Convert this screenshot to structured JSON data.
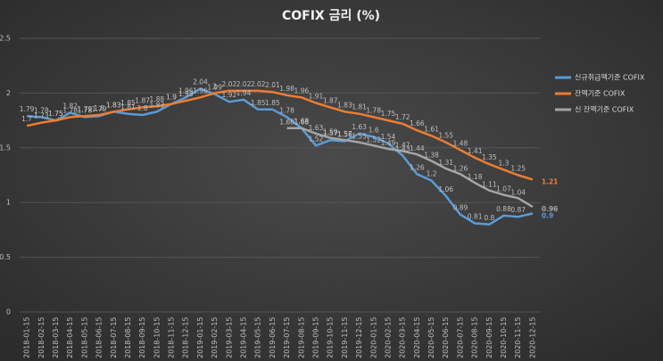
{
  "chart_data": {
    "type": "line",
    "title": "COFIX 금리 (%)",
    "categories": [
      "2018-01-15",
      "2018-02-15",
      "2018-03-15",
      "2018-04-15",
      "2018-05-15",
      "2018-06-15",
      "2018-07-15",
      "2018-08-15",
      "2018-09-15",
      "2018-10-15",
      "2018-11-15",
      "2018-12-15",
      "2019-01-15",
      "2019-02-15",
      "2019-03-15",
      "2019-04-15",
      "2019-05-15",
      "2019-06-15",
      "2019-07-15",
      "2019-08-15",
      "2019-09-15",
      "2019-10-15",
      "2019-11-15",
      "2019-12-15",
      "2020-01-15",
      "2020-02-15",
      "2020-03-15",
      "2020-04-15",
      "2020-05-15",
      "2020-06-15",
      "2020-07-15",
      "2020-08-15",
      "2020-09-15",
      "2020-10-15",
      "2020-11-15",
      "2020-12-15"
    ],
    "series": [
      {
        "name": "신규취급액기준 COFIX",
        "color": "#5b9bd5",
        "values": [
          1.79,
          1.78,
          1.75,
          1.82,
          1.78,
          1.79,
          1.83,
          1.81,
          1.8,
          1.83,
          1.9,
          1.96,
          2.04,
          1.99,
          1.92,
          1.94,
          1.85,
          1.85,
          1.78,
          1.68,
          1.52,
          1.57,
          1.56,
          1.63,
          1.6,
          1.54,
          1.43,
          1.26,
          1.2,
          1.06,
          0.89,
          0.81,
          0.8,
          0.88,
          0.87,
          0.9
        ]
      },
      {
        "name": "잔액기준 COFIX",
        "color": "#ed7d31",
        "values": [
          1.7,
          1.73,
          1.75,
          1.78,
          1.79,
          1.8,
          1.83,
          1.85,
          1.87,
          1.88,
          1.9,
          1.93,
          1.96,
          2.0,
          2.02,
          2.02,
          2.02,
          2.01,
          1.98,
          1.96,
          1.91,
          1.87,
          1.83,
          1.81,
          1.78,
          1.75,
          1.72,
          1.66,
          1.61,
          1.55,
          1.48,
          1.41,
          1.35,
          1.3,
          1.25,
          1.21
        ]
      },
      {
        "name": "신 잔액기준 COFIX",
        "color": "#a5a5a5",
        "values": [
          null,
          null,
          null,
          null,
          null,
          null,
          null,
          null,
          null,
          null,
          null,
          null,
          null,
          null,
          null,
          null,
          null,
          null,
          1.68,
          1.68,
          1.63,
          1.59,
          1.57,
          1.55,
          1.52,
          1.49,
          1.47,
          1.44,
          1.38,
          1.31,
          1.26,
          1.18,
          1.11,
          1.07,
          1.04,
          0.96
        ]
      }
    ],
    "ylim": [
      0,
      2.5
    ],
    "yticks": [
      0,
      0.5,
      1,
      1.5,
      2,
      2.5
    ],
    "grid": true,
    "legend": "right"
  }
}
